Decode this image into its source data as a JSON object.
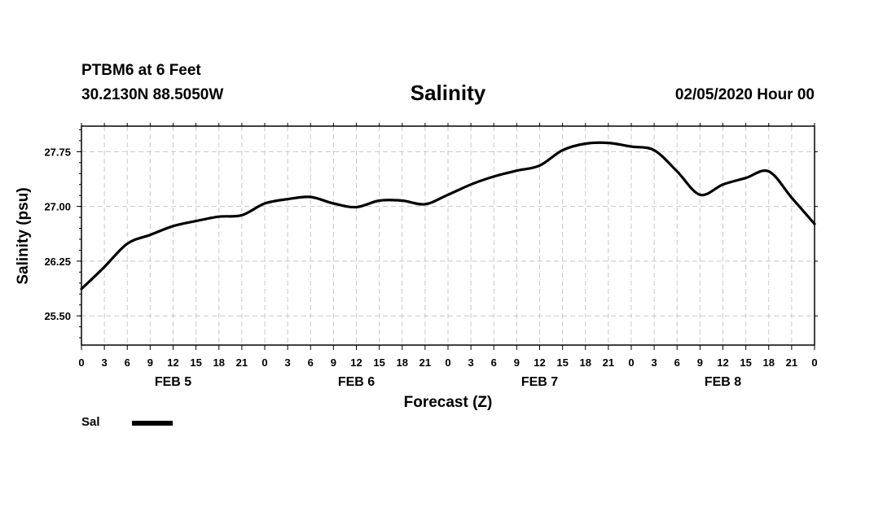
{
  "header": {
    "station": "PTBM6 at 6 Feet",
    "coords": "30.2130N 88.5050W",
    "datetime": "02/05/2020 Hour 00"
  },
  "chart_data": {
    "type": "line",
    "title": "Salinity",
    "xlabel": "Forecast (Z)",
    "ylabel": "Salinity (psu)",
    "ylim": [
      25.1,
      28.1
    ],
    "yticks": [
      "25.50",
      "26.25",
      "27.00",
      "27.75"
    ],
    "ytick_values": [
      25.5,
      26.25,
      27.0,
      27.75
    ],
    "xlim": [
      0,
      96
    ],
    "xtick_labels": [
      "0",
      "3",
      "6",
      "9",
      "12",
      "15",
      "18",
      "21",
      "0",
      "3",
      "6",
      "9",
      "12",
      "15",
      "18",
      "21",
      "0",
      "3",
      "6",
      "9",
      "12",
      "15",
      "18",
      "21",
      "0",
      "3",
      "6",
      "9",
      "12",
      "15",
      "18",
      "21",
      "0"
    ],
    "day_labels": [
      {
        "label": "FEB 5",
        "at_hour": 12
      },
      {
        "label": "FEB 6",
        "at_hour": 36
      },
      {
        "label": "FEB 7",
        "at_hour": 60
      },
      {
        "label": "FEB 8",
        "at_hour": 84
      }
    ],
    "grid": true,
    "legend": "bottom-left",
    "series": [
      {
        "name": "Sal",
        "color": "#000000",
        "x": [
          0,
          3,
          6,
          9,
          12,
          15,
          18,
          21,
          24,
          27,
          30,
          33,
          36,
          39,
          42,
          45,
          48,
          51,
          54,
          57,
          60,
          63,
          66,
          69,
          72,
          75,
          78,
          81,
          84,
          87,
          90,
          93,
          96
        ],
        "values": [
          25.87,
          26.17,
          26.49,
          26.61,
          26.73,
          26.8,
          26.86,
          26.88,
          27.04,
          27.1,
          27.13,
          27.04,
          26.99,
          27.08,
          27.08,
          27.03,
          27.16,
          27.3,
          27.41,
          27.49,
          27.56,
          27.77,
          27.86,
          27.87,
          27.82,
          27.77,
          27.48,
          27.16,
          27.3,
          27.39,
          27.48,
          27.12,
          26.76
        ]
      }
    ]
  },
  "legend": {
    "label": "Sal"
  }
}
